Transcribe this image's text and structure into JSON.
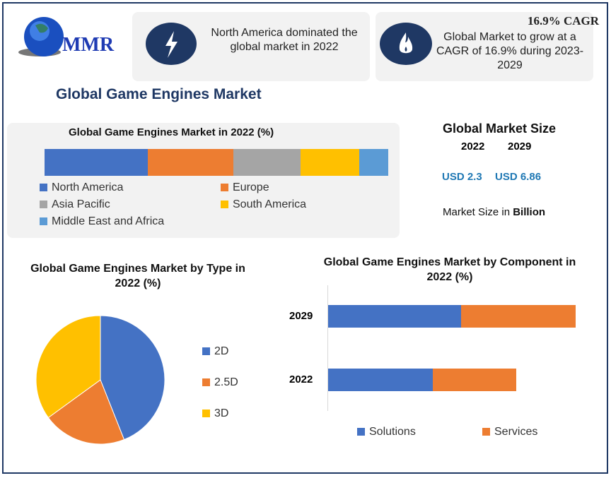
{
  "logo": {
    "text": "MMR"
  },
  "cards": [
    {
      "icon": "lightning-icon",
      "text": "North America dominated the global market in 2022"
    },
    {
      "icon": "flame-icon",
      "headline": "16.9% CAGR",
      "text": "Global Market to grow at a CAGR of 16.9% during 2023-2029"
    }
  ],
  "title": "Global Game Engines Market",
  "market_size": {
    "heading": "Global Market Size",
    "year1": "2022",
    "year2": "2029",
    "value1": "USD 2.3",
    "value2": "USD 6.86",
    "note_prefix": "Market Size in ",
    "note_unit": "Billion"
  },
  "colors": {
    "blue": "#4472c4",
    "orange": "#ed7d31",
    "gray": "#a5a5a5",
    "yellow": "#ffc000",
    "lightblue": "#5b9bd5",
    "navy": "#1f3864",
    "accent": "#1f78b4"
  },
  "chart_data": [
    {
      "type": "bar",
      "stacked": true,
      "orientation": "horizontal",
      "title": "Global Game Engines Market in 2022 (%)",
      "categories": [
        "North America",
        "Europe",
        "Asia Pacific",
        "South America",
        "Middle East and Africa"
      ],
      "values": [
        30,
        25,
        19.5,
        17,
        8.5
      ],
      "colors": [
        "#4472c4",
        "#ed7d31",
        "#a5a5a5",
        "#ffc000",
        "#5b9bd5"
      ],
      "legend": "bottom"
    },
    {
      "type": "pie",
      "title": "Global Game Engines Market by Type in 2022 (%)",
      "categories": [
        "2D",
        "2.5D",
        "3D"
      ],
      "values": [
        44,
        21,
        35
      ],
      "colors": [
        "#4472c4",
        "#ed7d31",
        "#ffc000"
      ],
      "legend": "right"
    },
    {
      "type": "bar",
      "stacked": true,
      "orientation": "horizontal",
      "title": "Global Game Engines Market by Component in 2022 (%)",
      "categories": [
        "2029",
        "2022"
      ],
      "series": [
        {
          "name": "Solutions",
          "values": [
            53.6,
            55.8
          ],
          "color": "#4472c4"
        },
        {
          "name": "Services",
          "values": [
            46.4,
            44.2
          ],
          "color": "#ed7d31"
        }
      ],
      "totals_relative": [
        1.0,
        0.76
      ],
      "legend": "bottom"
    }
  ]
}
